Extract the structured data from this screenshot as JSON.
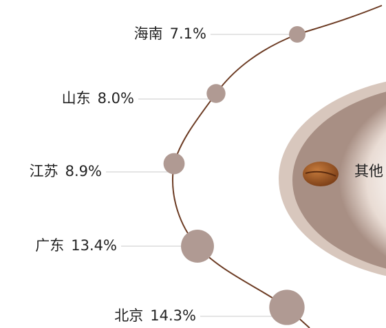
{
  "chart_data": {
    "type": "bubble",
    "categories": [
      "海南",
      "山东",
      "江苏",
      "广东",
      "北京"
    ],
    "values": [
      7.1,
      8.0,
      8.9,
      13.4,
      14.3
    ],
    "value_labels": [
      "7.1%",
      "8.0%",
      "8.9%",
      "13.4%",
      "14.3%"
    ],
    "color": "#b09a93",
    "other_label": "其他"
  }
}
